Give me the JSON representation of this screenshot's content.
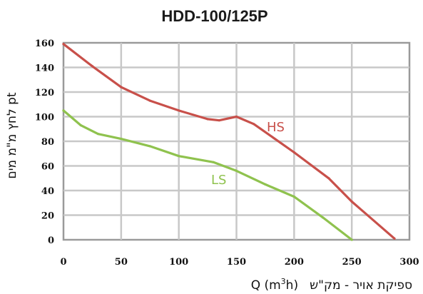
{
  "chart_data": {
    "type": "line",
    "title": "HDD-100/125P",
    "xlabel": "Q (m³h)  ספיקת אויר - מק\"ש",
    "xlabel_parts": [
      "Q (m",
      "3",
      "h)",
      "ספיקת אויר - מק\"ש"
    ],
    "ylabel": "לחץ מ\"מ מים pt",
    "xlim": [
      0,
      300
    ],
    "ylim": [
      0,
      160
    ],
    "xticks": [
      "0",
      "50",
      "100",
      "150",
      "200",
      "250",
      "300"
    ],
    "yticks": [
      "0",
      "20",
      "40",
      "60",
      "80",
      "100",
      "120",
      "140",
      "160"
    ],
    "grid": true,
    "series": [
      {
        "name": "HS",
        "color": "#c8504a",
        "x": [
          0,
          25,
          50,
          75,
          100,
          125,
          135,
          150,
          165,
          200,
          230,
          250,
          287
        ],
        "y": [
          159,
          141,
          124,
          113,
          105,
          98,
          97,
          100,
          94,
          71,
          50,
          31,
          1
        ]
      },
      {
        "name": "LS",
        "color": "#8fc24e",
        "x": [
          0,
          15,
          30,
          50,
          75,
          100,
          130,
          150,
          175,
          200,
          225,
          250
        ],
        "y": [
          105,
          93,
          86,
          82,
          76,
          68,
          63,
          56,
          45,
          35,
          18,
          0
        ]
      }
    ]
  }
}
